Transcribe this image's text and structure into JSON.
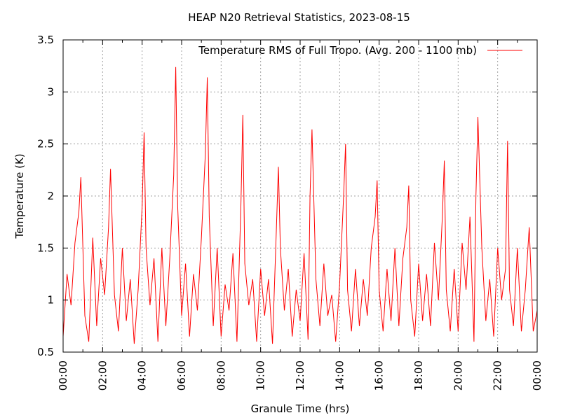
{
  "chart_data": {
    "type": "line",
    "title": "HEAP N20 Retrieval Statistics, 2023-08-15",
    "xlabel": "Granule Time (hrs)",
    "ylabel": "Temperature (K)",
    "xlim": [
      0,
      24
    ],
    "ylim": [
      0.5,
      3.5
    ],
    "x_ticks": [
      "00:00",
      "02:00",
      "04:00",
      "06:00",
      "08:00",
      "10:00",
      "12:00",
      "14:00",
      "16:00",
      "18:00",
      "20:00",
      "22:00",
      "00:00"
    ],
    "y_ticks": [
      "0.5",
      "1",
      "1.5",
      "2",
      "2.5",
      "3",
      "3.5"
    ],
    "grid": true,
    "legend_position": "top-right",
    "series": [
      {
        "name": "Temperature RMS of Full Tropo. (Avg. 200 - 1100 mb)",
        "color": "#ff0000",
        "x": [
          0.0,
          0.2,
          0.4,
          0.6,
          0.8,
          0.9,
          1.1,
          1.3,
          1.5,
          1.7,
          1.9,
          2.1,
          2.3,
          2.4,
          2.6,
          2.8,
          3.0,
          3.2,
          3.4,
          3.6,
          3.8,
          4.0,
          4.1,
          4.2,
          4.4,
          4.6,
          4.8,
          5.0,
          5.2,
          5.4,
          5.6,
          5.7,
          5.8,
          6.0,
          6.2,
          6.4,
          6.6,
          6.8,
          7.0,
          7.2,
          7.3,
          7.4,
          7.6,
          7.8,
          8.0,
          8.2,
          8.4,
          8.6,
          8.8,
          9.0,
          9.1,
          9.2,
          9.4,
          9.6,
          9.8,
          10.0,
          10.2,
          10.4,
          10.6,
          10.8,
          10.9,
          11.0,
          11.2,
          11.4,
          11.6,
          11.8,
          12.0,
          12.2,
          12.4,
          12.5,
          12.6,
          12.8,
          13.0,
          13.2,
          13.4,
          13.6,
          13.8,
          14.0,
          14.2,
          14.3,
          14.4,
          14.6,
          14.8,
          15.0,
          15.2,
          15.4,
          15.6,
          15.8,
          15.9,
          16.0,
          16.2,
          16.4,
          16.6,
          16.8,
          17.0,
          17.2,
          17.4,
          17.5,
          17.6,
          17.8,
          18.0,
          18.2,
          18.4,
          18.6,
          18.8,
          19.0,
          19.2,
          19.3,
          19.4,
          19.6,
          19.8,
          20.0,
          20.2,
          20.4,
          20.6,
          20.8,
          20.9,
          21.0,
          21.2,
          21.4,
          21.6,
          21.8,
          22.0,
          22.2,
          22.4,
          22.5,
          22.6,
          22.8,
          23.0,
          23.2,
          23.4,
          23.6,
          23.8,
          24.0
        ],
        "values": [
          0.65,
          1.25,
          0.95,
          1.55,
          1.85,
          2.18,
          0.85,
          0.6,
          1.6,
          0.75,
          1.4,
          1.05,
          1.7,
          2.26,
          1.05,
          0.7,
          1.5,
          0.8,
          1.2,
          0.58,
          1.1,
          1.9,
          2.61,
          1.5,
          0.95,
          1.4,
          0.6,
          1.5,
          0.75,
          1.4,
          2.2,
          3.24,
          1.9,
          0.85,
          1.35,
          0.65,
          1.25,
          0.9,
          1.6,
          2.4,
          3.14,
          1.8,
          0.75,
          1.5,
          0.65,
          1.15,
          0.9,
          1.45,
          0.6,
          1.9,
          2.78,
          1.35,
          0.95,
          1.2,
          0.6,
          1.3,
          0.85,
          1.2,
          0.58,
          1.7,
          2.28,
          1.5,
          0.9,
          1.3,
          0.65,
          1.1,
          0.8,
          1.45,
          0.62,
          2.0,
          2.64,
          1.2,
          0.75,
          1.35,
          0.85,
          1.05,
          0.6,
          1.15,
          2.0,
          2.5,
          1.1,
          0.7,
          1.3,
          0.75,
          1.2,
          0.85,
          1.5,
          1.8,
          2.15,
          1.1,
          0.7,
          1.3,
          0.8,
          1.5,
          0.75,
          1.4,
          1.7,
          2.1,
          1.0,
          0.65,
          1.35,
          0.8,
          1.25,
          0.75,
          1.55,
          1.0,
          1.8,
          2.34,
          1.1,
          0.7,
          1.3,
          0.7,
          1.55,
          1.1,
          1.8,
          0.6,
          2.0,
          2.76,
          1.5,
          0.8,
          1.2,
          0.65,
          1.5,
          1.0,
          1.3,
          2.53,
          1.1,
          0.75,
          1.5,
          0.7,
          1.1,
          1.7,
          0.7,
          0.9
        ]
      }
    ]
  }
}
